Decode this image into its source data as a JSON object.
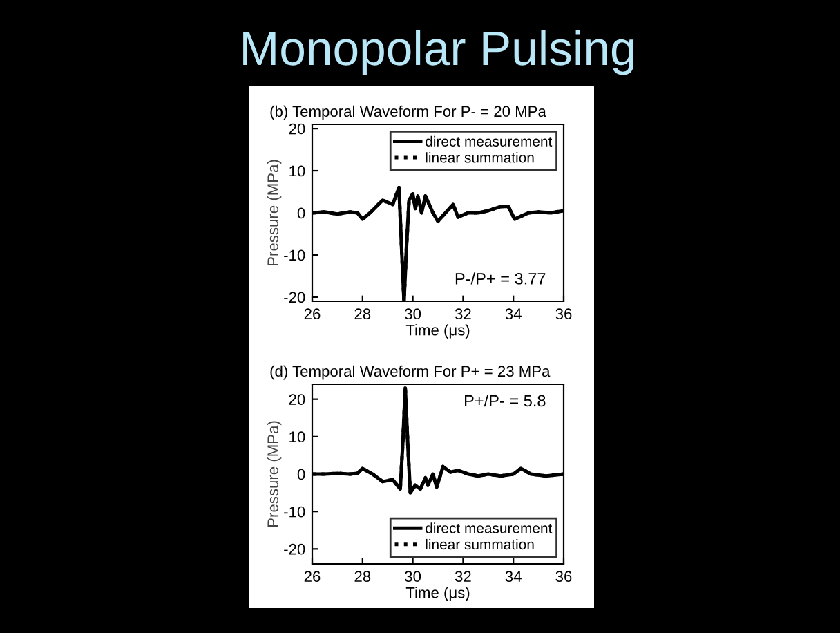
{
  "chart_data": [
    {
      "type": "line",
      "title": "(b) Temporal Waveform For P- = 20 MPa",
      "xlabel": "Time (μs)",
      "ylabel": "Pressure (MPa)",
      "xlim": [
        26,
        36
      ],
      "ylim": [
        -21,
        21
      ],
      "xticks": [
        26,
        28,
        30,
        32,
        34,
        36
      ],
      "yticks": [
        -20,
        -10,
        0,
        10,
        20
      ],
      "legend": "top right",
      "grid": false,
      "annotations": [
        "Monopolar Pulsing",
        "P-/P+ = 3.77"
      ],
      "x": [
        26,
        26.5,
        27,
        27.5,
        27.8,
        28,
        28.3,
        28.8,
        29.2,
        29.45,
        29.55,
        29.65,
        29.75,
        29.85,
        30.0,
        30.1,
        30.2,
        30.35,
        30.5,
        30.8,
        31.0,
        31.3,
        31.6,
        31.8,
        32.2,
        32.6,
        33,
        33.5,
        33.8,
        34.05,
        34.6,
        35,
        35.5,
        36
      ],
      "series": [
        {
          "name": "direct measurement",
          "color": "#000000",
          "line_style": "solid",
          "values": [
            0,
            0.2,
            -0.3,
            0.2,
            0,
            -1.5,
            0,
            3,
            2,
            6,
            -8,
            -21,
            -8,
            3,
            4.5,
            1,
            4,
            0,
            4,
            0,
            -2,
            0,
            2,
            -1,
            0,
            0,
            0.5,
            1.5,
            1.5,
            -1.5,
            0,
            0.2,
            0,
            0.5
          ]
        },
        {
          "name": "linear summation",
          "color": "#000000",
          "line_style": "dotted",
          "values": [
            0,
            0.2,
            -0.3,
            0.2,
            0,
            -1.5,
            0,
            3,
            2,
            6,
            -8,
            -21,
            -8,
            3,
            4.5,
            1,
            4,
            0,
            4,
            0,
            -2,
            0,
            2,
            -1,
            0,
            0,
            0.5,
            1.5,
            1.5,
            -1.5,
            0,
            0.2,
            0,
            0.5
          ]
        }
      ]
    },
    {
      "type": "line",
      "title": "(d) Temporal Waveform For P+ = 23 MPa",
      "xlabel": "Time (μs)",
      "ylabel": "Pressure (MPa)",
      "xlim": [
        26,
        36
      ],
      "ylim": [
        -24,
        24
      ],
      "xticks": [
        26,
        28,
        30,
        32,
        34,
        36
      ],
      "yticks": [
        -20,
        -10,
        0,
        10,
        20
      ],
      "legend": "bottom right",
      "grid": false,
      "annotations": [
        "P+/P- = 5.8"
      ],
      "x": [
        26,
        26.5,
        27,
        27.5,
        27.8,
        28,
        28.4,
        28.8,
        29.2,
        29.5,
        29.6,
        29.7,
        29.8,
        29.9,
        30.1,
        30.3,
        30.5,
        30.6,
        30.8,
        30.95,
        31.2,
        31.5,
        31.8,
        32.2,
        32.6,
        33,
        33.5,
        34,
        34.3,
        34.7,
        35.3,
        36
      ],
      "series": [
        {
          "name": "direct measurement",
          "color": "#000000",
          "line_style": "solid",
          "values": [
            0,
            0,
            0.2,
            0,
            0.2,
            1.5,
            0,
            -2,
            -1.5,
            -4,
            8,
            23,
            8,
            -5,
            -3,
            -4,
            -1,
            -3,
            0,
            -3.5,
            2,
            0.5,
            1,
            0,
            -0.5,
            0,
            -0.5,
            0,
            1.5,
            0,
            -0.5,
            0
          ]
        },
        {
          "name": "linear summation",
          "color": "#000000",
          "line_style": "dotted",
          "values": [
            0,
            0,
            0.2,
            0,
            0.2,
            1.5,
            0,
            -2,
            -1.5,
            -4,
            8,
            23,
            8,
            -5,
            -3,
            -4,
            -1,
            -3,
            0,
            -3.5,
            2,
            0.5,
            1,
            0,
            -0.5,
            0,
            -0.5,
            0,
            1.5,
            0,
            -0.5,
            0
          ]
        }
      ]
    }
  ]
}
